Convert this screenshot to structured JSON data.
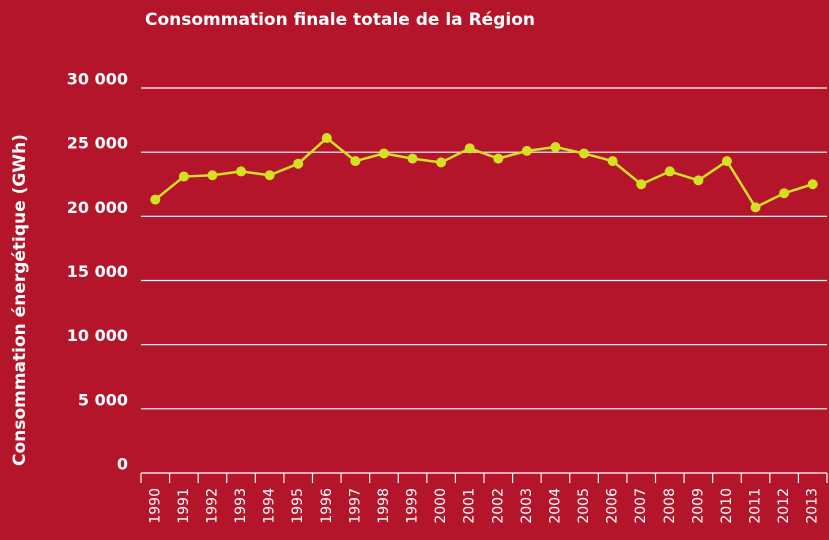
{
  "chart_data": {
    "type": "line",
    "title": "Consommation finale totale de la Région",
    "y_label": "Consommation énergétique (GWh)",
    "categories": [
      "1990",
      "1991",
      "1992",
      "1993",
      "1994",
      "1995",
      "1996",
      "1997",
      "1998",
      "1999",
      "2000",
      "2001",
      "2002",
      "2003",
      "2004",
      "2005",
      "2006",
      "2007",
      "2008",
      "2009",
      "2010",
      "2011",
      "2012",
      "2013"
    ],
    "series": [
      {
        "name": "Consommation finale totale",
        "color": "#d4e022",
        "values": [
          21300,
          23100,
          23200,
          23500,
          23200,
          24100,
          26100,
          24300,
          24900,
          24500,
          24200,
          25300,
          24500,
          25100,
          25400,
          24900,
          24300,
          22500,
          23500,
          22800,
          24300,
          20700,
          21800,
          22500
        ]
      }
    ],
    "ylim": [
      0,
      30000
    ],
    "yticks": [
      {
        "value": 0,
        "label": "0"
      },
      {
        "value": 5000,
        "label": "5 000"
      },
      {
        "value": 10000,
        "label": "10 000"
      },
      {
        "value": 15000,
        "label": "15 000"
      },
      {
        "value": 20000,
        "label": "20 000"
      },
      {
        "value": 25000,
        "label": "25 000"
      },
      {
        "value": 30000,
        "label": "30 000"
      }
    ],
    "grid": true
  }
}
